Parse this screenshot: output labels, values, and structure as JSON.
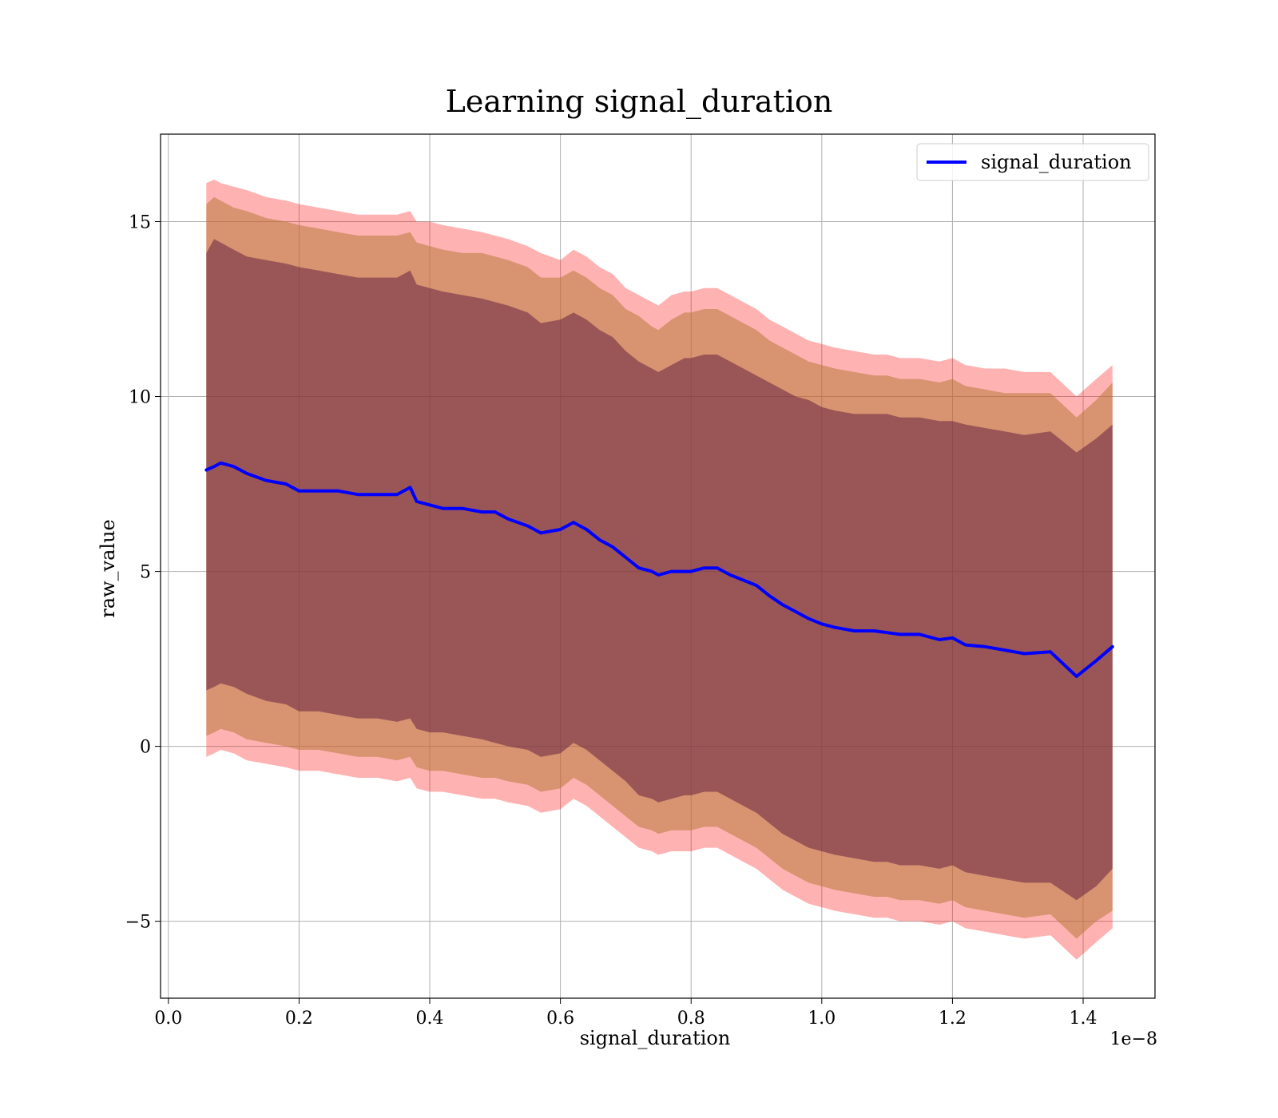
{
  "colors": {
    "mean_line": "#0000ff",
    "outer_band": "#ff0000",
    "middle_band": "#b87a3b",
    "inner_band": "#5b1a3d",
    "grid": "#b0b0b0"
  },
  "chart_data": {
    "type": "line",
    "title": "Learning signal_duration",
    "xlabel": "signal_duration",
    "ylabel": "raw_value",
    "x_offset_label": "1e−8",
    "xlim": [
      -0.012,
      1.51
    ],
    "ylim": [
      -7.2,
      17.5
    ],
    "x_ticks": [
      0.0,
      0.2,
      0.4,
      0.6,
      0.8,
      1.0,
      1.2,
      1.4
    ],
    "x_tick_labels": [
      "0.0",
      "0.2",
      "0.4",
      "0.6",
      "0.8",
      "1.0",
      "1.2",
      "1.4"
    ],
    "y_ticks": [
      -5,
      0,
      5,
      10,
      15
    ],
    "y_tick_labels": [
      "−5",
      "0",
      "5",
      "10",
      "15"
    ],
    "grid": true,
    "legend_position": "top-right",
    "series": [
      {
        "name": "signal_duration",
        "x": [
          0.058,
          0.07,
          0.08,
          0.1,
          0.12,
          0.15,
          0.18,
          0.2,
          0.23,
          0.26,
          0.29,
          0.32,
          0.35,
          0.37,
          0.38,
          0.4,
          0.42,
          0.45,
          0.48,
          0.5,
          0.52,
          0.55,
          0.57,
          0.6,
          0.62,
          0.64,
          0.66,
          0.68,
          0.7,
          0.72,
          0.74,
          0.75,
          0.77,
          0.79,
          0.8,
          0.82,
          0.84,
          0.86,
          0.88,
          0.9,
          0.92,
          0.94,
          0.96,
          0.98,
          1.0,
          1.02,
          1.05,
          1.08,
          1.1,
          1.12,
          1.15,
          1.18,
          1.2,
          1.22,
          1.25,
          1.28,
          1.31,
          1.35,
          1.39,
          1.42,
          1.445
        ],
        "values": [
          7.9,
          8.0,
          8.1,
          8.0,
          7.8,
          7.6,
          7.5,
          7.3,
          7.3,
          7.3,
          7.2,
          7.2,
          7.2,
          7.4,
          7.0,
          6.9,
          6.8,
          6.8,
          6.7,
          6.7,
          6.5,
          6.3,
          6.1,
          6.2,
          6.4,
          6.2,
          5.9,
          5.7,
          5.4,
          5.1,
          5.0,
          4.9,
          5.0,
          5.0,
          5.0,
          5.1,
          5.1,
          4.9,
          4.75,
          4.6,
          4.3,
          4.05,
          3.85,
          3.65,
          3.5,
          3.4,
          3.3,
          3.3,
          3.25,
          3.2,
          3.2,
          3.05,
          3.1,
          2.9,
          2.85,
          2.75,
          2.65,
          2.7,
          2.0,
          2.45,
          2.85
        ]
      }
    ],
    "bands": [
      {
        "level": "outer",
        "upper": [
          16.1,
          16.2,
          16.1,
          16.0,
          15.9,
          15.7,
          15.6,
          15.5,
          15.4,
          15.3,
          15.2,
          15.2,
          15.2,
          15.3,
          15.0,
          15.0,
          14.9,
          14.8,
          14.7,
          14.6,
          14.5,
          14.3,
          14.1,
          13.9,
          14.2,
          14.0,
          13.7,
          13.5,
          13.1,
          12.9,
          12.7,
          12.6,
          12.9,
          13.0,
          13.0,
          13.1,
          13.1,
          12.9,
          12.7,
          12.5,
          12.2,
          12.0,
          11.8,
          11.6,
          11.5,
          11.4,
          11.3,
          11.2,
          11.2,
          11.1,
          11.1,
          11.0,
          11.1,
          10.9,
          10.8,
          10.8,
          10.7,
          10.7,
          10.0,
          10.5,
          10.9
        ],
        "lower": [
          -0.3,
          -0.2,
          -0.1,
          -0.2,
          -0.4,
          -0.5,
          -0.6,
          -0.7,
          -0.7,
          -0.8,
          -0.9,
          -0.9,
          -1.0,
          -0.9,
          -1.2,
          -1.3,
          -1.3,
          -1.4,
          -1.5,
          -1.5,
          -1.6,
          -1.7,
          -1.9,
          -1.8,
          -1.5,
          -1.7,
          -2.0,
          -2.3,
          -2.6,
          -2.9,
          -3.0,
          -3.1,
          -3.0,
          -3.0,
          -3.0,
          -2.9,
          -2.9,
          -3.1,
          -3.3,
          -3.5,
          -3.8,
          -4.1,
          -4.3,
          -4.5,
          -4.6,
          -4.7,
          -4.8,
          -4.9,
          -4.9,
          -5.0,
          -5.0,
          -5.1,
          -5.0,
          -5.2,
          -5.3,
          -5.4,
          -5.5,
          -5.4,
          -6.1,
          -5.6,
          -5.2
        ]
      },
      {
        "level": "middle",
        "upper": [
          15.5,
          15.7,
          15.6,
          15.4,
          15.3,
          15.1,
          15.0,
          14.9,
          14.8,
          14.7,
          14.6,
          14.6,
          14.6,
          14.7,
          14.4,
          14.3,
          14.2,
          14.1,
          14.1,
          14.0,
          13.9,
          13.7,
          13.4,
          13.4,
          13.6,
          13.4,
          13.1,
          12.9,
          12.5,
          12.3,
          12.0,
          11.9,
          12.2,
          12.4,
          12.4,
          12.5,
          12.5,
          12.3,
          12.1,
          11.9,
          11.6,
          11.4,
          11.2,
          11.0,
          10.9,
          10.8,
          10.7,
          10.6,
          10.6,
          10.5,
          10.5,
          10.4,
          10.5,
          10.3,
          10.2,
          10.1,
          10.1,
          10.1,
          9.4,
          9.9,
          10.4
        ],
        "lower": [
          0.3,
          0.4,
          0.5,
          0.4,
          0.2,
          0.1,
          0.0,
          -0.1,
          -0.1,
          -0.2,
          -0.3,
          -0.3,
          -0.4,
          -0.3,
          -0.6,
          -0.7,
          -0.7,
          -0.8,
          -0.9,
          -0.9,
          -1.0,
          -1.1,
          -1.3,
          -1.2,
          -0.9,
          -1.1,
          -1.4,
          -1.7,
          -2.0,
          -2.3,
          -2.4,
          -2.5,
          -2.4,
          -2.4,
          -2.4,
          -2.3,
          -2.3,
          -2.5,
          -2.7,
          -2.9,
          -3.2,
          -3.5,
          -3.7,
          -3.9,
          -4.0,
          -4.1,
          -4.2,
          -4.3,
          -4.3,
          -4.4,
          -4.4,
          -4.5,
          -4.4,
          -4.6,
          -4.7,
          -4.8,
          -4.9,
          -4.8,
          -5.5,
          -5.0,
          -4.7
        ]
      },
      {
        "level": "inner",
        "upper": [
          14.1,
          14.5,
          14.4,
          14.2,
          14.0,
          13.9,
          13.8,
          13.7,
          13.6,
          13.5,
          13.4,
          13.4,
          13.4,
          13.6,
          13.2,
          13.1,
          13.0,
          12.9,
          12.8,
          12.7,
          12.6,
          12.4,
          12.1,
          12.2,
          12.4,
          12.2,
          11.9,
          11.7,
          11.3,
          11.0,
          10.8,
          10.7,
          10.9,
          11.1,
          11.1,
          11.2,
          11.2,
          11.0,
          10.8,
          10.6,
          10.4,
          10.2,
          10.0,
          9.9,
          9.7,
          9.6,
          9.5,
          9.5,
          9.5,
          9.4,
          9.4,
          9.3,
          9.3,
          9.2,
          9.1,
          9.0,
          8.9,
          9.0,
          8.4,
          8.8,
          9.2
        ],
        "lower": [
          1.6,
          1.7,
          1.8,
          1.7,
          1.5,
          1.3,
          1.2,
          1.0,
          1.0,
          0.9,
          0.8,
          0.8,
          0.7,
          0.8,
          0.5,
          0.4,
          0.4,
          0.3,
          0.2,
          0.1,
          0.0,
          -0.1,
          -0.3,
          -0.2,
          0.1,
          -0.1,
          -0.4,
          -0.7,
          -1.0,
          -1.4,
          -1.5,
          -1.6,
          -1.5,
          -1.4,
          -1.4,
          -1.3,
          -1.3,
          -1.5,
          -1.7,
          -1.9,
          -2.2,
          -2.5,
          -2.7,
          -2.9,
          -3.0,
          -3.1,
          -3.2,
          -3.3,
          -3.3,
          -3.4,
          -3.4,
          -3.5,
          -3.4,
          -3.6,
          -3.7,
          -3.8,
          -3.9,
          -3.9,
          -4.4,
          -4.0,
          -3.5
        ]
      }
    ]
  }
}
